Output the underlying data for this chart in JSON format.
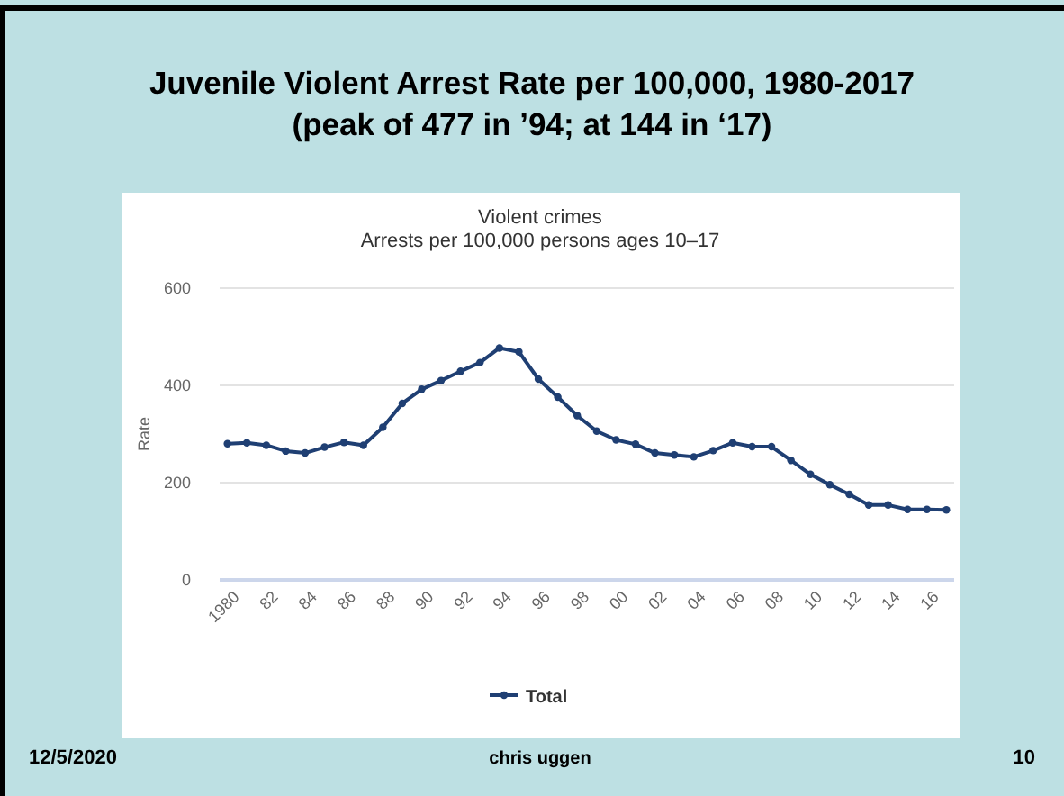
{
  "chart_data": {
    "type": "line",
    "title": "Juvenile Violent Arrest Rate per 100,000, 1980-2017 (peak of 477 in ’94; at 144 in ‘17)",
    "subtitle": "Violent crimes",
    "annotations": [
      "Arrests per 100,000 persons ages 10–17",
      "12/5/2020",
      "chris uggen",
      "10"
    ],
    "ylabel": "Rate",
    "x": [
      1980,
      1981,
      1982,
      1983,
      1984,
      1985,
      1986,
      1987,
      1988,
      1989,
      1990,
      1991,
      1992,
      1993,
      1994,
      1995,
      1996,
      1997,
      1998,
      1999,
      2000,
      2001,
      2002,
      2003,
      2004,
      2005,
      2006,
      2007,
      2008,
      2009,
      2010,
      2011,
      2012,
      2013,
      2014,
      2015,
      2016,
      2017
    ],
    "series": [
      {
        "name": "Total",
        "color": "#1f3f73",
        "values": [
          280,
          282,
          277,
          265,
          261,
          273,
          283,
          277,
          314,
          363,
          392,
          410,
          429,
          447,
          477,
          469,
          413,
          376,
          338,
          306,
          288,
          279,
          261,
          257,
          253,
          266,
          282,
          274,
          274,
          246,
          217,
          196,
          176,
          154,
          154,
          145,
          145,
          144
        ]
      }
    ],
    "xlim": [
      1979.6,
      2017.4
    ],
    "xticks": [
      {
        "value": 1980,
        "label": "1980"
      },
      {
        "value": 1982,
        "label": "82"
      },
      {
        "value": 1984,
        "label": "84"
      },
      {
        "value": 1986,
        "label": "86"
      },
      {
        "value": 1988,
        "label": "88"
      },
      {
        "value": 1990,
        "label": "90"
      },
      {
        "value": 1992,
        "label": "92"
      },
      {
        "value": 1994,
        "label": "94"
      },
      {
        "value": 1996,
        "label": "96"
      },
      {
        "value": 1998,
        "label": "98"
      },
      {
        "value": 2000,
        "label": "00"
      },
      {
        "value": 2002,
        "label": "02"
      },
      {
        "value": 2004,
        "label": "04"
      },
      {
        "value": 2006,
        "label": "06"
      },
      {
        "value": 2008,
        "label": "08"
      },
      {
        "value": 2010,
        "label": "10"
      },
      {
        "value": 2012,
        "label": "12"
      },
      {
        "value": 2014,
        "label": "14"
      },
      {
        "value": 2016,
        "label": "16"
      }
    ],
    "ylim": [
      0,
      600
    ],
    "yticks": [
      0,
      200,
      400,
      600
    ],
    "grid": "y",
    "legend": "bottom",
    "marker": "circle",
    "line_style": "solid"
  }
}
